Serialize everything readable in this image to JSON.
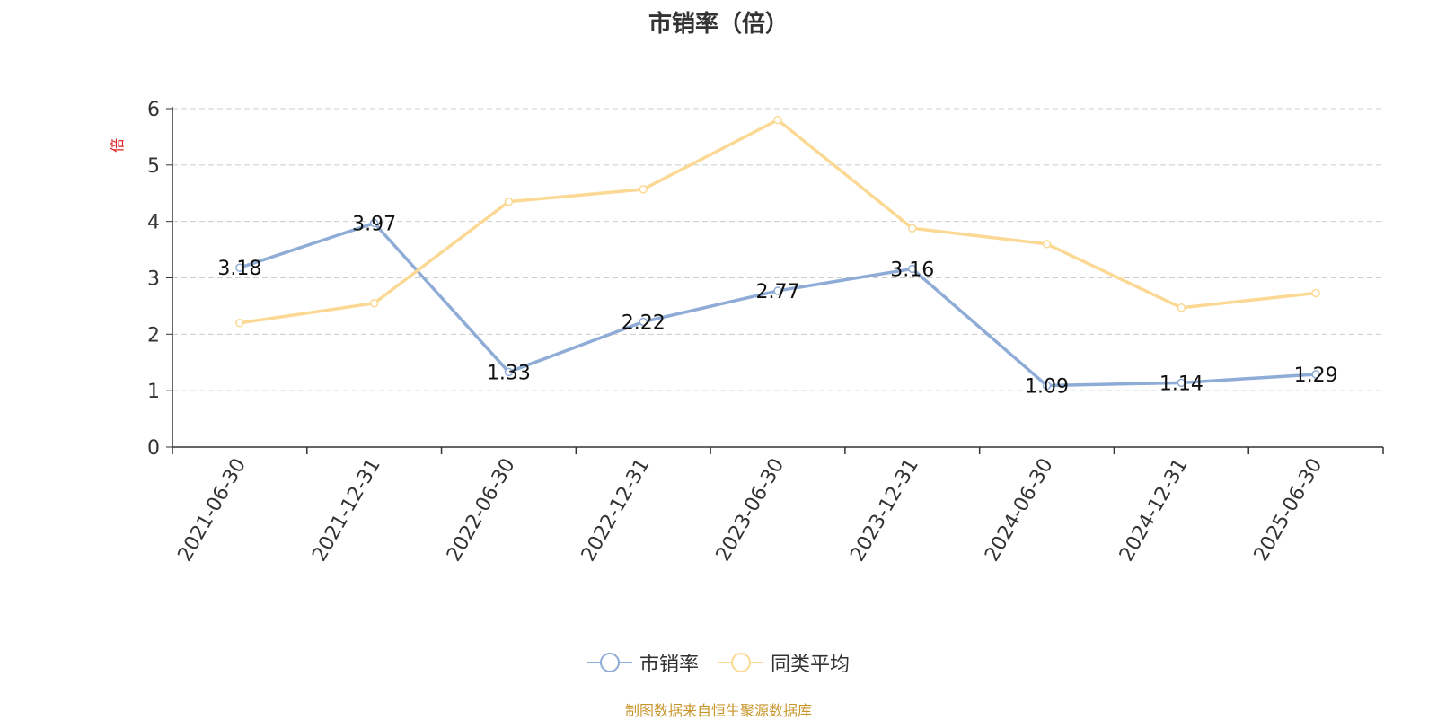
{
  "chart_data": {
    "type": "line",
    "title": "市销率（倍）",
    "ylabel": "倍",
    "xlabel": "",
    "categories": [
      "2021-06-30",
      "2021-12-31",
      "2022-06-30",
      "2022-12-31",
      "2023-06-30",
      "2023-12-31",
      "2024-06-30",
      "2024-12-31",
      "2025-06-30"
    ],
    "ylim": [
      0,
      6
    ],
    "yticks": [
      "0",
      "1",
      "2",
      "3",
      "4",
      "5",
      "6"
    ],
    "grid": true,
    "legend_position": "bottom",
    "series": [
      {
        "name": "市销率",
        "color": "#8eacd6",
        "values": [
          3.18,
          3.97,
          1.33,
          2.22,
          2.77,
          3.16,
          1.09,
          1.14,
          1.29
        ],
        "labels": [
          "3.18",
          "3.97",
          "1.33",
          "2.22",
          "2.77",
          "3.16",
          "1.09",
          "1.14",
          "1.29"
        ]
      },
      {
        "name": "同类平均",
        "color": "#fbd994",
        "values": [
          2.2,
          2.55,
          4.35,
          4.57,
          5.8,
          3.88,
          3.6,
          2.47,
          2.73
        ]
      }
    ]
  },
  "footer": {
    "source": "制图数据来自恒生聚源数据库"
  },
  "colors": {
    "ylabel": "#e02020",
    "axis": "#333333",
    "grid": "#cccccc",
    "source": "#c8952a"
  }
}
